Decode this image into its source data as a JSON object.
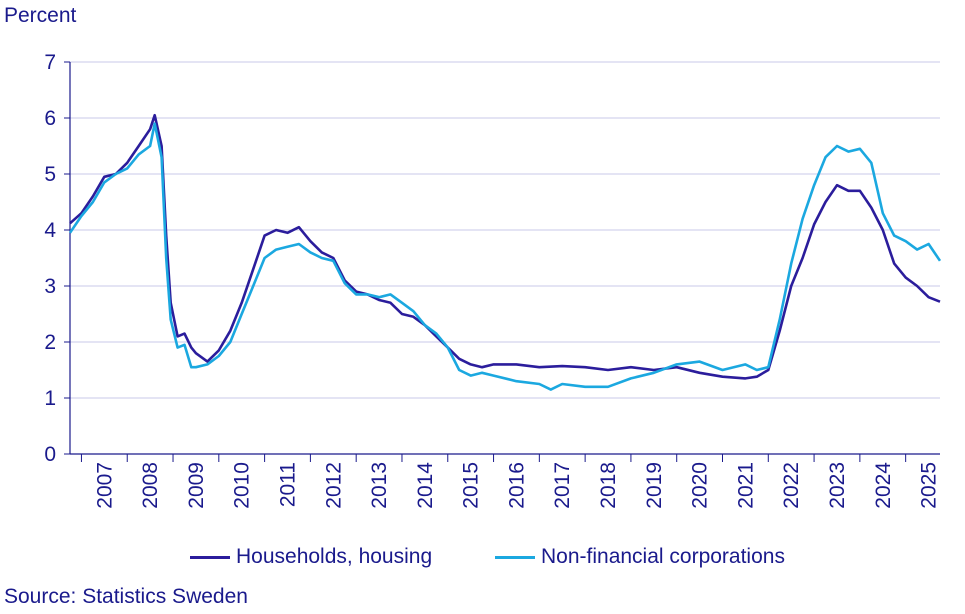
{
  "chart_data": {
    "type": "line",
    "ylabel": "Percent",
    "ylim": [
      0,
      7
    ],
    "yticks": [
      "0",
      "1",
      "2",
      "3",
      "4",
      "5",
      "6",
      "7"
    ],
    "xlim": [
      2006.75,
      2025.75
    ],
    "xticks": [
      "2007",
      "2008",
      "2009",
      "2010",
      "2011",
      "2012",
      "2013",
      "2014",
      "2015",
      "2016",
      "2017",
      "2018",
      "2019",
      "2020",
      "2021",
      "2022",
      "2023",
      "2024",
      "2025"
    ],
    "grid": true,
    "legend": "bottom",
    "series": [
      {
        "name": "Households, housing",
        "color": "#2b1d9c",
        "x": [
          2006.75,
          2007.0,
          2007.25,
          2007.5,
          2007.75,
          2008.0,
          2008.25,
          2008.5,
          2008.6,
          2008.75,
          2008.85,
          2008.95,
          2009.1,
          2009.25,
          2009.4,
          2009.5,
          2009.75,
          2010.0,
          2010.25,
          2010.5,
          2010.75,
          2011.0,
          2011.25,
          2011.5,
          2011.75,
          2012.0,
          2012.25,
          2012.5,
          2012.75,
          2013.0,
          2013.25,
          2013.5,
          2013.75,
          2014.0,
          2014.25,
          2014.5,
          2014.75,
          2015.0,
          2015.25,
          2015.5,
          2015.75,
          2016.0,
          2016.5,
          2017.0,
          2017.5,
          2018.0,
          2018.5,
          2019.0,
          2019.5,
          2020.0,
          2020.5,
          2021.0,
          2021.5,
          2021.75,
          2022.0,
          2022.25,
          2022.5,
          2022.75,
          2023.0,
          2023.25,
          2023.5,
          2023.75,
          2024.0,
          2024.25,
          2024.5,
          2024.75,
          2025.0,
          2025.25,
          2025.5,
          2025.75
        ],
        "y": [
          4.12,
          4.3,
          4.6,
          4.95,
          5.0,
          5.2,
          5.5,
          5.8,
          6.05,
          5.5,
          3.9,
          2.7,
          2.1,
          2.15,
          1.9,
          1.8,
          1.65,
          1.85,
          2.2,
          2.7,
          3.3,
          3.9,
          4.0,
          3.95,
          4.05,
          3.8,
          3.6,
          3.5,
          3.1,
          2.9,
          2.85,
          2.75,
          2.7,
          2.5,
          2.45,
          2.3,
          2.1,
          1.9,
          1.7,
          1.6,
          1.55,
          1.6,
          1.6,
          1.55,
          1.57,
          1.55,
          1.5,
          1.55,
          1.5,
          1.55,
          1.45,
          1.38,
          1.35,
          1.38,
          1.5,
          2.2,
          3.0,
          3.5,
          4.1,
          4.5,
          4.8,
          4.7,
          4.7,
          4.4,
          4.0,
          3.4,
          3.15,
          3.0,
          2.8,
          2.72
        ]
      },
      {
        "name": "Non-financial corporations",
        "color": "#1ba8e0",
        "x": [
          2006.75,
          2007.0,
          2007.25,
          2007.5,
          2007.75,
          2008.0,
          2008.25,
          2008.5,
          2008.6,
          2008.75,
          2008.85,
          2008.95,
          2009.1,
          2009.25,
          2009.4,
          2009.5,
          2009.75,
          2010.0,
          2010.25,
          2010.5,
          2010.75,
          2011.0,
          2011.25,
          2011.5,
          2011.75,
          2012.0,
          2012.25,
          2012.5,
          2012.75,
          2013.0,
          2013.25,
          2013.5,
          2013.75,
          2014.0,
          2014.25,
          2014.5,
          2014.75,
          2015.0,
          2015.25,
          2015.5,
          2015.75,
          2016.0,
          2016.5,
          2017.0,
          2017.25,
          2017.5,
          2018.0,
          2018.5,
          2019.0,
          2019.5,
          2020.0,
          2020.5,
          2021.0,
          2021.5,
          2021.75,
          2022.0,
          2022.25,
          2022.5,
          2022.75,
          2023.0,
          2023.25,
          2023.5,
          2023.75,
          2024.0,
          2024.25,
          2024.5,
          2024.75,
          2025.0,
          2025.25,
          2025.5,
          2025.75
        ],
        "y": [
          3.95,
          4.25,
          4.5,
          4.85,
          5.0,
          5.1,
          5.35,
          5.5,
          5.9,
          5.3,
          3.5,
          2.4,
          1.9,
          1.95,
          1.55,
          1.55,
          1.6,
          1.75,
          2.0,
          2.5,
          3.0,
          3.5,
          3.65,
          3.7,
          3.75,
          3.6,
          3.5,
          3.45,
          3.05,
          2.85,
          2.85,
          2.8,
          2.85,
          2.7,
          2.55,
          2.3,
          2.15,
          1.9,
          1.5,
          1.4,
          1.45,
          1.4,
          1.3,
          1.25,
          1.15,
          1.25,
          1.2,
          1.2,
          1.35,
          1.45,
          1.6,
          1.65,
          1.5,
          1.6,
          1.5,
          1.55,
          2.4,
          3.4,
          4.2,
          4.8,
          5.3,
          5.5,
          5.4,
          5.45,
          5.2,
          4.3,
          3.9,
          3.8,
          3.65,
          3.75,
          3.45
        ]
      }
    ]
  },
  "source_text": "Source: Statistics Sweden"
}
